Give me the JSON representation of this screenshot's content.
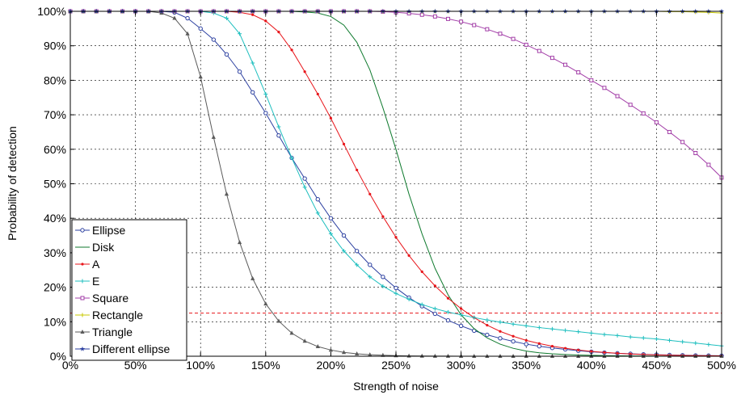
{
  "chart_data": {
    "type": "line",
    "title": "",
    "xlabel": "Strength of noise",
    "ylabel": "Probability of detection",
    "xlim": [
      0,
      500
    ],
    "ylim": [
      0,
      100
    ],
    "grid": true,
    "legend_position": "bottom-left",
    "x_ticks": [
      "0%",
      "50%",
      "100%",
      "150%",
      "200%",
      "250%",
      "300%",
      "350%",
      "400%",
      "450%",
      "500%"
    ],
    "y_ticks": [
      "0%",
      "10%",
      "20%",
      "30%",
      "40%",
      "50%",
      "60%",
      "70%",
      "80%",
      "90%",
      "100%"
    ],
    "x": [
      0,
      10,
      20,
      30,
      40,
      50,
      60,
      70,
      80,
      90,
      100,
      110,
      120,
      130,
      140,
      150,
      160,
      170,
      180,
      190,
      200,
      210,
      220,
      230,
      240,
      250,
      260,
      270,
      280,
      290,
      300,
      310,
      320,
      330,
      340,
      350,
      360,
      370,
      380,
      390,
      400,
      410,
      420,
      430,
      440,
      450,
      460,
      470,
      480,
      490,
      500
    ],
    "series": [
      {
        "name": "Ellipse",
        "color": "#2b3fa0",
        "marker": "circle",
        "values": [
          100,
          100,
          100,
          100,
          100,
          100,
          100,
          100,
          99.7,
          98,
          95,
          91.8,
          87.5,
          82.5,
          76.5,
          70.5,
          64,
          57.5,
          51.5,
          45.5,
          40,
          35,
          30.5,
          26.5,
          23,
          19.8,
          17,
          14.5,
          12.3,
          10.4,
          8.8,
          7.4,
          6.2,
          5.2,
          4.3,
          3.5,
          2.9,
          2.4,
          2,
          1.6,
          1.3,
          1.05,
          0.85,
          0.7,
          0.55,
          0.45,
          0.35,
          0.28,
          0.22,
          0.18,
          0.14
        ]
      },
      {
        "name": "Disk",
        "color": "#0f7a2e",
        "marker": "none",
        "values": [
          100,
          100,
          100,
          100,
          100,
          100,
          100,
          100,
          100,
          100,
          100,
          100,
          100,
          100,
          100,
          100,
          100,
          100,
          99.8,
          99.5,
          98.5,
          96,
          91,
          83,
          72,
          60,
          47,
          35.5,
          25.5,
          17.8,
          12,
          8,
          5.3,
          3.5,
          2.3,
          1.5,
          1,
          0.7,
          0.5,
          0.35,
          0.25,
          0.17,
          0.12,
          0.08,
          0.05,
          0.03,
          0.02,
          0.01,
          0.01,
          0,
          0
        ]
      },
      {
        "name": "A",
        "color": "#e8161b",
        "marker": "dot",
        "values": [
          100,
          100,
          100,
          100,
          100,
          100,
          100,
          100,
          100,
          100,
          100,
          100,
          100,
          99.7,
          99,
          97.2,
          94,
          88.8,
          82.5,
          76,
          69,
          61.5,
          54,
          47,
          40.5,
          34.5,
          29.2,
          24.5,
          20.4,
          16.8,
          13.8,
          11.2,
          9,
          7.2,
          5.8,
          4.6,
          3.7,
          2.9,
          2.3,
          1.8,
          1.4,
          1.1,
          0.85,
          0.65,
          0.5,
          0.38,
          0.3,
          0.23,
          0.18,
          0.14,
          0.1
        ]
      },
      {
        "name": "E",
        "color": "#1fbfbf",
        "marker": "plus",
        "values": [
          100,
          100,
          100,
          100,
          100,
          100,
          100,
          100,
          100,
          100,
          100,
          99.5,
          98,
          93.5,
          85,
          76,
          66.5,
          57.5,
          49,
          41.5,
          35.5,
          30.5,
          26.5,
          23,
          20.3,
          18.2,
          16.5,
          15,
          13.8,
          12.8,
          12,
          11.2,
          10.5,
          9.9,
          9.3,
          8.8,
          8.3,
          7.9,
          7.5,
          7.1,
          6.7,
          6.3,
          6,
          5.6,
          5.3,
          5,
          4.6,
          4.2,
          3.8,
          3.4,
          3
        ]
      },
      {
        "name": "Square",
        "color": "#a33fa8",
        "marker": "square",
        "values": [
          100,
          100,
          100,
          100,
          100,
          100,
          100,
          100,
          100,
          100,
          100,
          100,
          100,
          100,
          100,
          100,
          100,
          100,
          100,
          100,
          100,
          100,
          100,
          100,
          99.9,
          99.7,
          99.4,
          99,
          98.5,
          97.8,
          97,
          96,
          94.8,
          93.5,
          92,
          90.3,
          88.5,
          86.5,
          84.5,
          82.3,
          80,
          77.8,
          75.4,
          72.9,
          70.4,
          67.8,
          65,
          62.1,
          58.9,
          55.5,
          51.8
        ]
      },
      {
        "name": "Rectangle",
        "color": "#c8c800",
        "marker": "plus",
        "values": [
          100,
          100,
          100,
          100,
          100,
          100,
          100,
          100,
          100,
          100,
          100,
          100,
          100,
          100,
          100,
          100,
          100,
          100,
          100,
          100,
          100,
          100,
          100,
          100,
          100,
          100,
          100,
          100,
          100,
          100,
          100,
          100,
          100,
          100,
          100,
          100,
          100,
          100,
          100,
          100,
          100,
          100,
          100,
          100,
          100,
          100,
          99.9,
          99.9,
          99.8,
          99.7,
          99.5
        ]
      },
      {
        "name": "Triangle",
        "color": "#5a5a5a",
        "marker": "triangle",
        "values": [
          100,
          100,
          100,
          100,
          100,
          100,
          100,
          99.5,
          98,
          93.5,
          81,
          63.5,
          47,
          33,
          22.5,
          15.2,
          10.2,
          6.7,
          4.4,
          2.8,
          1.8,
          1.1,
          0.7,
          0.45,
          0.28,
          0.17,
          0.1,
          0.06,
          0.04,
          0.02,
          0.01,
          0,
          0,
          0,
          0,
          0,
          0,
          0,
          0,
          0,
          0,
          0,
          0,
          0,
          0,
          0,
          0,
          0,
          0,
          0,
          0
        ]
      },
      {
        "name": "Different ellipse",
        "color": "#2b3fa0",
        "marker": "star",
        "values": [
          100,
          100,
          100,
          100,
          100,
          100,
          100,
          100,
          100,
          100,
          100,
          100,
          100,
          100,
          100,
          100,
          100,
          100,
          100,
          100,
          100,
          100,
          100,
          100,
          100,
          100,
          100,
          100,
          100,
          100,
          100,
          100,
          100,
          100,
          100,
          100,
          100,
          100,
          100,
          100,
          100,
          100,
          100,
          100,
          100,
          100,
          100,
          100,
          100,
          100,
          100
        ]
      }
    ],
    "reference_line": {
      "y": 12.5,
      "color": "#e8161b",
      "style": "dashed"
    }
  }
}
